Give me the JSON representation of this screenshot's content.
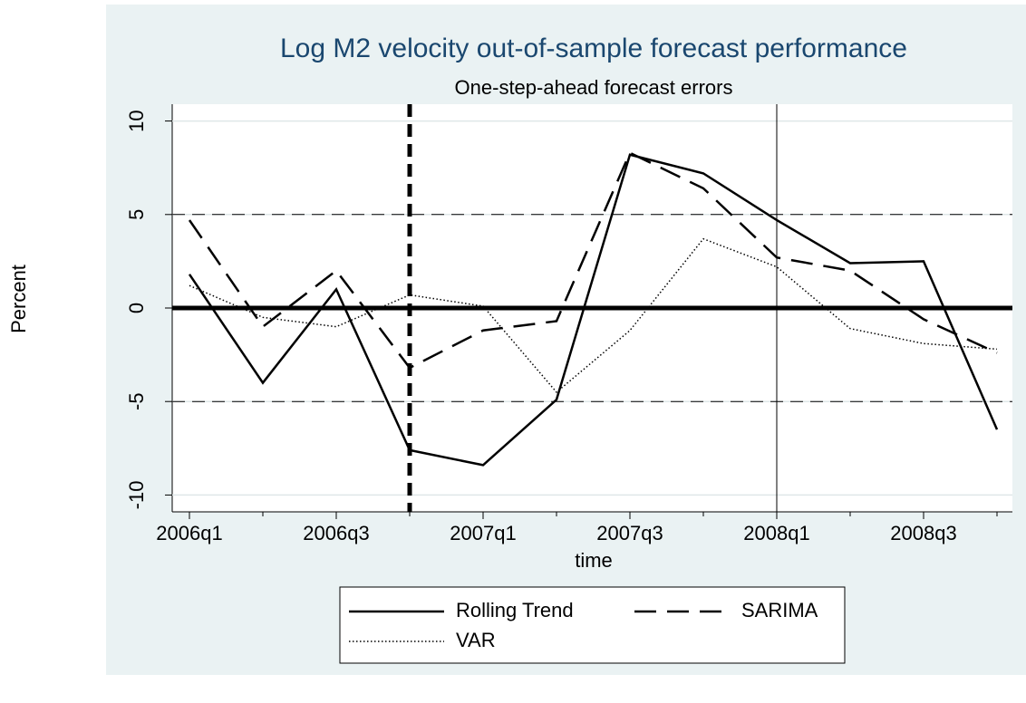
{
  "chart_data": {
    "type": "line",
    "title": "Log M2 velocity out-of-sample forecast performance",
    "subtitle": "One-step-ahead forecast errors",
    "x_label": "time",
    "y_label": "Percent",
    "categories": [
      "2006q1",
      null,
      "2006q3",
      null,
      "2007q1",
      null,
      "2007q3",
      null,
      "2008q1",
      null,
      "2008q3",
      null
    ],
    "series": [
      {
        "name": "Rolling Trend",
        "color": "#000000",
        "dash": "solid",
        "values": [
          1.8,
          -4.0,
          1.0,
          -7.6,
          -8.4,
          -4.9,
          8.2,
          7.2,
          4.7,
          2.4,
          2.5,
          -6.5
        ]
      },
      {
        "name": "SARIMA",
        "color": "#000000",
        "dash": "dashed",
        "values": [
          4.7,
          -1.0,
          2.0,
          -3.2,
          -1.2,
          -0.7,
          8.3,
          6.4,
          2.7,
          2.0,
          -0.6,
          -2.4
        ]
      },
      {
        "name": "VAR",
        "color": "#000000",
        "dash": "dotted",
        "values": [
          1.2,
          -0.5,
          -1.0,
          0.7,
          0.1,
          -4.5,
          -1.2,
          3.7,
          2.2,
          -1.1,
          -1.9,
          -2.2
        ]
      }
    ],
    "ylim": [
      -10.9,
      10.9
    ],
    "yticks": [
      -10,
      -5,
      0,
      5,
      10
    ],
    "grid": true,
    "hlines": [
      {
        "value": -5,
        "style": "dashed"
      },
      {
        "value": 0,
        "style": "thick"
      },
      {
        "value": 5,
        "style": "dashed"
      }
    ],
    "vlines": [
      {
        "value": 3,
        "style": "thickdashed"
      },
      {
        "value": 8,
        "style": "thin"
      }
    ],
    "legend": "bottom"
  }
}
